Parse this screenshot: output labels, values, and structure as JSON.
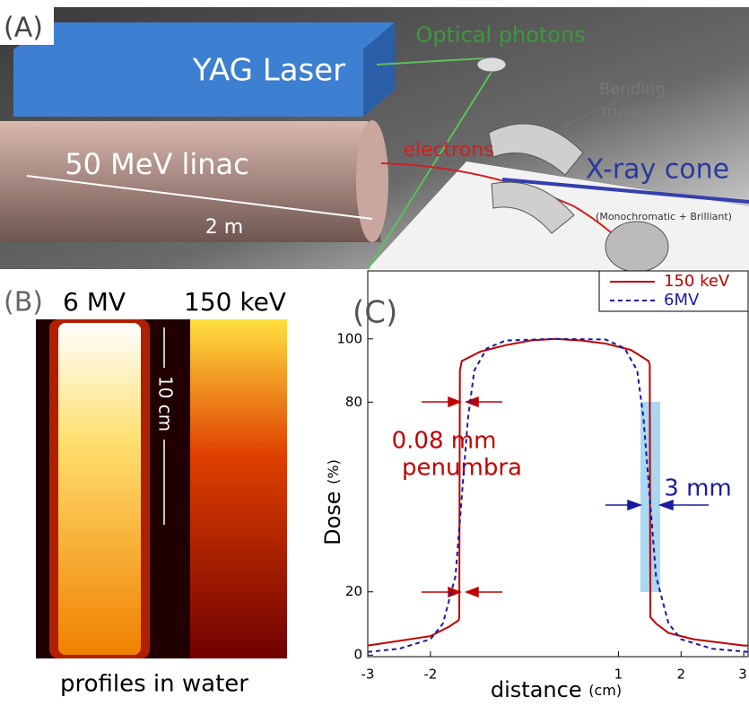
{
  "panel_a": {
    "label": "(A)",
    "laser": "YAG Laser",
    "photons": "Optical photons",
    "magnet": [
      "Bending",
      "magnet"
    ],
    "linac": "50 MeV linac",
    "electrons": "electrons",
    "xray": "X-ray cone",
    "xray_note": "(Monochromatic + Brilliant)",
    "length": "2 m"
  },
  "panel_b": {
    "label": "(B)",
    "left": "6 MV",
    "right": "150 keV",
    "scale": "10 cm",
    "caption": "profiles in water"
  },
  "chart_data": {
    "type": "line",
    "panel_label": "(C)",
    "x_label": "distance",
    "x_unit": "(cm)",
    "y_label": "Dose",
    "y_unit": "(%)",
    "xlim": [
      -3,
      3.07
    ],
    "xticks": [
      -3,
      -2,
      1,
      2,
      3
    ],
    "ylim": [
      -0.5,
      121.5
    ],
    "yticks": [
      0,
      20,
      80,
      100
    ],
    "legend": "top-right",
    "annotations": {
      "penumbra_value": "0.08 mm",
      "penumbra": "penumbra",
      "width": "3 mm"
    },
    "series": [
      {
        "name": "150 keV",
        "color": "#c00000",
        "dash": false,
        "x": [
          -3,
          -2.5,
          -2,
          -1.7,
          -1.55,
          -1.54,
          -1.53,
          -1.5,
          -1.2,
          -0.8,
          -0.4,
          0,
          0.4,
          0.8,
          1.2,
          1.48,
          1.5,
          1.51,
          1.6,
          1.8,
          2.2,
          3,
          3.07
        ],
        "values": [
          3,
          4.5,
          6,
          9,
          11,
          12,
          90,
          93,
          96,
          98,
          99.5,
          100,
          99.5,
          98.5,
          96.5,
          93,
          92,
          12,
          10,
          7,
          5,
          3,
          3
        ]
      },
      {
        "name": "6MV",
        "color": "#1a1aa0",
        "dash": true,
        "x": [
          -3,
          -2.5,
          -2,
          -1.8,
          -1.6,
          -1.5,
          -1.4,
          -1.3,
          -1.1,
          -0.8,
          0,
          0.8,
          1.1,
          1.3,
          1.4,
          1.5,
          1.6,
          1.8,
          2,
          2.5,
          3.07
        ],
        "values": [
          1,
          2,
          5,
          10,
          25,
          50,
          75,
          90,
          97,
          99.5,
          100,
          99.8,
          97,
          90,
          75,
          50,
          25,
          10,
          5,
          2,
          1
        ]
      }
    ]
  }
}
